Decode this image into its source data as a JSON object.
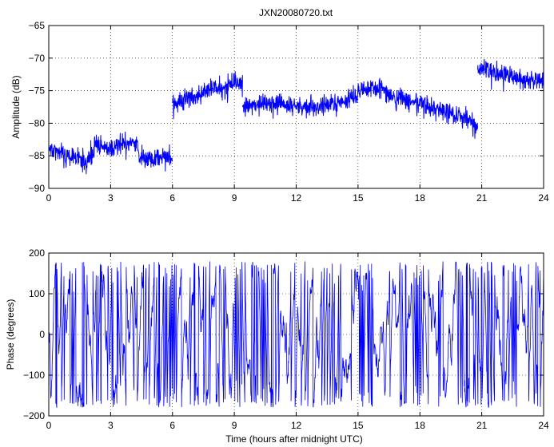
{
  "chart_data": [
    {
      "type": "line",
      "title": "JXN20080720.txt",
      "xlabel": "",
      "ylabel": "Amplitude (dB)",
      "xlim": [
        0,
        24
      ],
      "ylim": [
        -90,
        -65
      ],
      "grid": true,
      "color": "#0000ff",
      "xticks": [
        0,
        3,
        6,
        9,
        12,
        15,
        18,
        21,
        24
      ],
      "yticks": [
        -90,
        -85,
        -80,
        -75,
        -70,
        -65
      ],
      "segments": [
        {
          "x": [
            0,
            1,
            1.5,
            1.9,
            2.3,
            2.6,
            3,
            3.5,
            4,
            4.3,
            4.4,
            5,
            6
          ],
          "y": [
            -84,
            -85,
            -86,
            -86,
            -83,
            -83.5,
            -84,
            -83.5,
            -83,
            -83,
            -85.5,
            -85.3,
            -85
          ]
        },
        {
          "x": [
            6,
            6.5,
            7,
            7.5,
            8,
            8.5,
            9,
            9.4
          ],
          "y": [
            -77,
            -76.5,
            -76,
            -75.3,
            -74.7,
            -74.5,
            -74,
            -73.5
          ]
        },
        {
          "x": [
            9.4,
            10,
            11,
            12,
            13,
            14,
            15,
            15.7,
            16.5,
            17,
            18,
            19,
            20,
            20.8
          ],
          "y": [
            -77.5,
            -77.2,
            -77,
            -77.5,
            -77.5,
            -77,
            -75.5,
            -74.2,
            -75.5,
            -76.3,
            -77,
            -78,
            -79,
            -80.5
          ]
        },
        {
          "x": [
            20.8,
            21,
            22,
            23,
            24
          ],
          "y": [
            -72.5,
            -71.5,
            -72.5,
            -73,
            -73.5
          ]
        }
      ],
      "noise": 1.1
    },
    {
      "type": "line",
      "title": "",
      "xlabel": "Time (hours after midnight UTC)",
      "ylabel": "Phase (degrees)",
      "xlim": [
        0,
        24
      ],
      "ylim": [
        -200,
        200
      ],
      "grid": true,
      "color": "#0000ff",
      "xticks": [
        0,
        3,
        6,
        9,
        12,
        15,
        18,
        21,
        24
      ],
      "yticks": [
        -200,
        -100,
        0,
        100,
        200
      ],
      "wrap": [
        -180,
        180
      ]
    }
  ]
}
